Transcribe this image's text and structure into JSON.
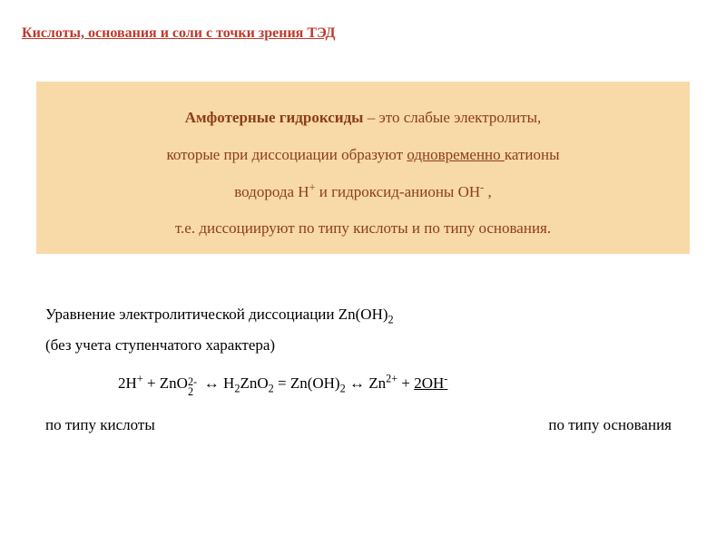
{
  "colors": {
    "title": "#c0392b",
    "box_bg": "#f8d9a8",
    "box_text": "#8b3e1a",
    "body_text": "#000000",
    "page_bg": "#ffffff"
  },
  "fonts": {
    "family": "Times New Roman",
    "title_size_pt": 16,
    "box_size_pt": 17,
    "body_size_pt": 17
  },
  "title": "Кислоты, основания и соли с точки зрения ТЭД",
  "definition": {
    "term": "Амфотерные гидроксиды",
    "line1_rest": " – это слабые электролиты,",
    "line2_pre": "которые при диссоциации образуют ",
    "line2_u": "одновременно ",
    "line2_post": "катионы",
    "line3_a": "водорода H",
    "line3_sup1": "+",
    "line3_b": " и гидроксид-анионы OH",
    "line3_sup2": "-",
    "line3_c": " ,",
    "line4": "т.е. диссоциируют по типу кислоты и по типу основания."
  },
  "body": {
    "p1_a": "Уравнение электролитической диссоциации  Zn(OH)",
    "p1_sub": "2",
    "p2": "(без учета ступенчатого характера)",
    "eq": {
      "t1": "2H",
      "t1_sup": "+",
      "t2": " + ZnO",
      "t2_sub": "2",
      "t2_sup": "2-",
      "arr1": "  ↔  ",
      "t3a": "H",
      "t3a_sub": "2",
      "t3b": "ZnO",
      "t3b_sub": "2",
      "t3c": " = Zn(OH)",
      "t3c_sub": "2",
      "arr2": "  ↔  ",
      "t4a": "Zn",
      "t4a_sup": "2+",
      "t4b": " + ",
      "t4c_u": "2OH",
      "t4c_sup": "-"
    },
    "label_left": "по типу кислоты",
    "label_right": "по типу основания"
  }
}
